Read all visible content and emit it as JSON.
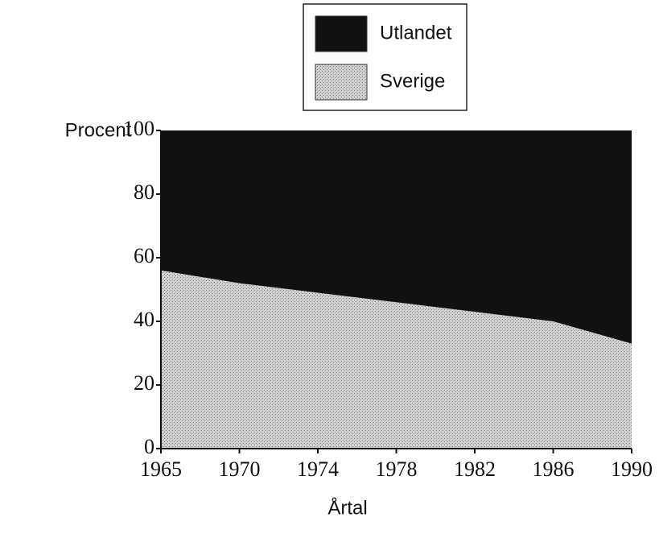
{
  "chart_data": {
    "type": "stacked_area",
    "categories": [
      "1965",
      "1970",
      "1974",
      "1978",
      "1982",
      "1986",
      "1990"
    ],
    "series": [
      {
        "name": "Sverige",
        "color": "#b5b5b5",
        "values": [
          56,
          52,
          49,
          46,
          43,
          40,
          33
        ]
      },
      {
        "name": "Utlandet",
        "color": "#111111",
        "values": [
          44,
          48,
          51,
          54,
          57,
          60,
          67
        ]
      }
    ],
    "ylabel": "Procent",
    "xlabel": "Årtal",
    "ylim": [
      0,
      100
    ],
    "yticks": [
      0,
      20,
      40,
      60,
      80,
      100
    ],
    "legend": "top"
  }
}
